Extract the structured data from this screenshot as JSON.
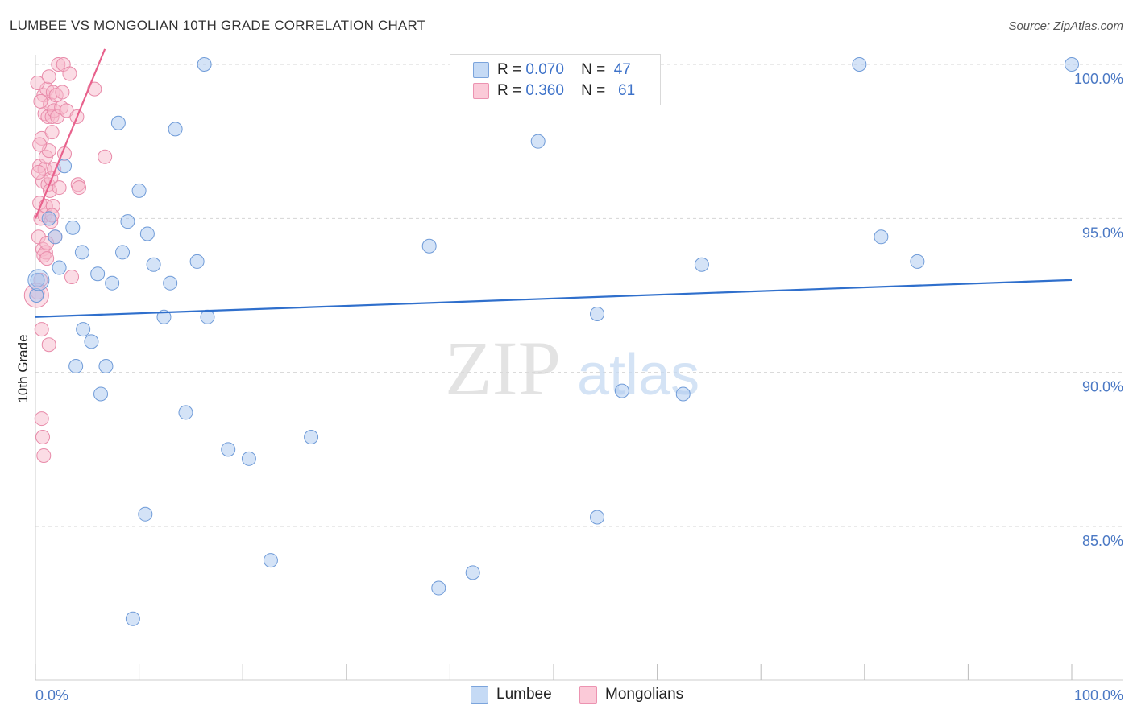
{
  "chart_data": {
    "type": "scatter",
    "title": "LUMBEE VS MONGOLIAN 10TH GRADE CORRELATION CHART",
    "source": "Source: ZipAtlas.com",
    "ylabel": "10th Grade",
    "xlabel": "",
    "xlim": [
      0,
      100
    ],
    "ylim": [
      80.0,
      100.5
    ],
    "x_tick_labels": [
      "0.0%",
      "100.0%"
    ],
    "y_ticks": [
      85.0,
      90.0,
      95.0,
      100.0
    ],
    "y_tick_labels": [
      "85.0%",
      "90.0%",
      "95.0%",
      "100.0%"
    ],
    "watermark": {
      "zip": "ZIP",
      "atlas": "atlas"
    },
    "legend": {
      "r_label": "R =",
      "n_label": "N =",
      "entries": [
        {
          "name": "Lumbee",
          "r": "0.070",
          "n": "47"
        },
        {
          "name": "Mongolians",
          "r": "0.360",
          "n": "61"
        }
      ]
    },
    "series": [
      {
        "name": "Lumbee",
        "fill": "#a9c8f0",
        "stroke": "#6f9bd8",
        "line_color": "#2f6fcc",
        "trend": {
          "x": [
            0,
            100
          ],
          "y": [
            91.8,
            93.0
          ]
        },
        "points": [
          {
            "x": 0.2,
            "y": 93.0
          },
          {
            "x": 1.3,
            "y": 95.0
          },
          {
            "x": 1.9,
            "y": 94.4
          },
          {
            "x": 2.3,
            "y": 93.4
          },
          {
            "x": 2.8,
            "y": 96.7
          },
          {
            "x": 3.6,
            "y": 94.7
          },
          {
            "x": 3.9,
            "y": 90.2
          },
          {
            "x": 4.5,
            "y": 93.9
          },
          {
            "x": 4.6,
            "y": 91.4
          },
          {
            "x": 5.4,
            "y": 91.0
          },
          {
            "x": 6.0,
            "y": 93.2
          },
          {
            "x": 6.3,
            "y": 89.3
          },
          {
            "x": 6.8,
            "y": 90.2
          },
          {
            "x": 7.4,
            "y": 92.9
          },
          {
            "x": 8.0,
            "y": 98.1
          },
          {
            "x": 8.4,
            "y": 93.9
          },
          {
            "x": 8.9,
            "y": 94.9
          },
          {
            "x": 9.4,
            "y": 82.0
          },
          {
            "x": 10.0,
            "y": 95.9
          },
          {
            "x": 10.6,
            "y": 85.4
          },
          {
            "x": 10.8,
            "y": 94.5
          },
          {
            "x": 11.4,
            "y": 93.5
          },
          {
            "x": 12.4,
            "y": 91.8
          },
          {
            "x": 13.0,
            "y": 92.9
          },
          {
            "x": 13.5,
            "y": 97.9
          },
          {
            "x": 14.5,
            "y": 88.7
          },
          {
            "x": 15.6,
            "y": 93.6
          },
          {
            "x": 16.3,
            "y": 100.0
          },
          {
            "x": 16.6,
            "y": 91.8
          },
          {
            "x": 18.6,
            "y": 87.5
          },
          {
            "x": 20.6,
            "y": 87.2
          },
          {
            "x": 22.7,
            "y": 83.9
          },
          {
            "x": 26.6,
            "y": 87.9
          },
          {
            "x": 38.0,
            "y": 94.1
          },
          {
            "x": 38.9,
            "y": 83.0
          },
          {
            "x": 42.2,
            "y": 83.5
          },
          {
            "x": 48.5,
            "y": 97.5
          },
          {
            "x": 54.2,
            "y": 91.9
          },
          {
            "x": 54.2,
            "y": 85.3
          },
          {
            "x": 56.6,
            "y": 89.4
          },
          {
            "x": 62.5,
            "y": 89.3
          },
          {
            "x": 64.3,
            "y": 93.5
          },
          {
            "x": 79.5,
            "y": 100.0
          },
          {
            "x": 81.6,
            "y": 94.4
          },
          {
            "x": 85.1,
            "y": 93.6
          },
          {
            "x": 100.0,
            "y": 100.0
          },
          {
            "x": 0.1,
            "y": 92.5
          }
        ]
      },
      {
        "name": "Mongolians",
        "fill": "#f7b9cc",
        "stroke": "#e88aa9",
        "line_color": "#e8618c",
        "trend": {
          "x": [
            0.0,
            6.7
          ],
          "y": [
            95.0,
            100.5
          ]
        },
        "points": [
          {
            "x": 0.2,
            "y": 92.6
          },
          {
            "x": 0.3,
            "y": 94.4
          },
          {
            "x": 0.4,
            "y": 95.5
          },
          {
            "x": 0.4,
            "y": 96.7
          },
          {
            "x": 0.5,
            "y": 93.0
          },
          {
            "x": 0.5,
            "y": 95.0
          },
          {
            "x": 0.6,
            "y": 88.5
          },
          {
            "x": 0.6,
            "y": 97.6
          },
          {
            "x": 0.6,
            "y": 91.4
          },
          {
            "x": 0.7,
            "y": 94.0
          },
          {
            "x": 0.7,
            "y": 87.9
          },
          {
            "x": 0.7,
            "y": 96.2
          },
          {
            "x": 0.8,
            "y": 87.3
          },
          {
            "x": 0.8,
            "y": 93.8
          },
          {
            "x": 0.8,
            "y": 99.0
          },
          {
            "x": 0.9,
            "y": 95.1
          },
          {
            "x": 0.9,
            "y": 96.6
          },
          {
            "x": 0.9,
            "y": 98.4
          },
          {
            "x": 1.0,
            "y": 93.9
          },
          {
            "x": 1.0,
            "y": 95.4
          },
          {
            "x": 1.0,
            "y": 97.0
          },
          {
            "x": 1.1,
            "y": 99.2
          },
          {
            "x": 1.1,
            "y": 93.7
          },
          {
            "x": 1.2,
            "y": 96.1
          },
          {
            "x": 1.2,
            "y": 98.3
          },
          {
            "x": 1.3,
            "y": 90.9
          },
          {
            "x": 1.3,
            "y": 97.2
          },
          {
            "x": 1.3,
            "y": 99.6
          },
          {
            "x": 1.4,
            "y": 95.9
          },
          {
            "x": 1.4,
            "y": 98.7
          },
          {
            "x": 1.5,
            "y": 94.9
          },
          {
            "x": 1.5,
            "y": 96.3
          },
          {
            "x": 1.6,
            "y": 97.8
          },
          {
            "x": 1.6,
            "y": 98.3
          },
          {
            "x": 1.7,
            "y": 99.1
          },
          {
            "x": 1.7,
            "y": 95.4
          },
          {
            "x": 1.8,
            "y": 96.6
          },
          {
            "x": 1.8,
            "y": 98.5
          },
          {
            "x": 1.9,
            "y": 94.4
          },
          {
            "x": 2.0,
            "y": 99.0
          },
          {
            "x": 2.1,
            "y": 98.3
          },
          {
            "x": 2.2,
            "y": 100.0
          },
          {
            "x": 2.3,
            "y": 96.0
          },
          {
            "x": 2.5,
            "y": 98.6
          },
          {
            "x": 2.6,
            "y": 99.1
          },
          {
            "x": 2.7,
            "y": 100.0
          },
          {
            "x": 2.8,
            "y": 97.1
          },
          {
            "x": 3.0,
            "y": 98.5
          },
          {
            "x": 3.3,
            "y": 99.7
          },
          {
            "x": 3.5,
            "y": 93.1
          },
          {
            "x": 4.0,
            "y": 98.3
          },
          {
            "x": 4.1,
            "y": 96.1
          },
          {
            "x": 4.2,
            "y": 96.0
          },
          {
            "x": 5.7,
            "y": 99.2
          },
          {
            "x": 6.7,
            "y": 97.0
          },
          {
            "x": 0.3,
            "y": 96.5
          },
          {
            "x": 0.5,
            "y": 98.8
          },
          {
            "x": 1.1,
            "y": 94.2
          },
          {
            "x": 0.4,
            "y": 97.4
          },
          {
            "x": 1.6,
            "y": 95.1
          },
          {
            "x": 0.2,
            "y": 99.4
          }
        ]
      }
    ]
  }
}
